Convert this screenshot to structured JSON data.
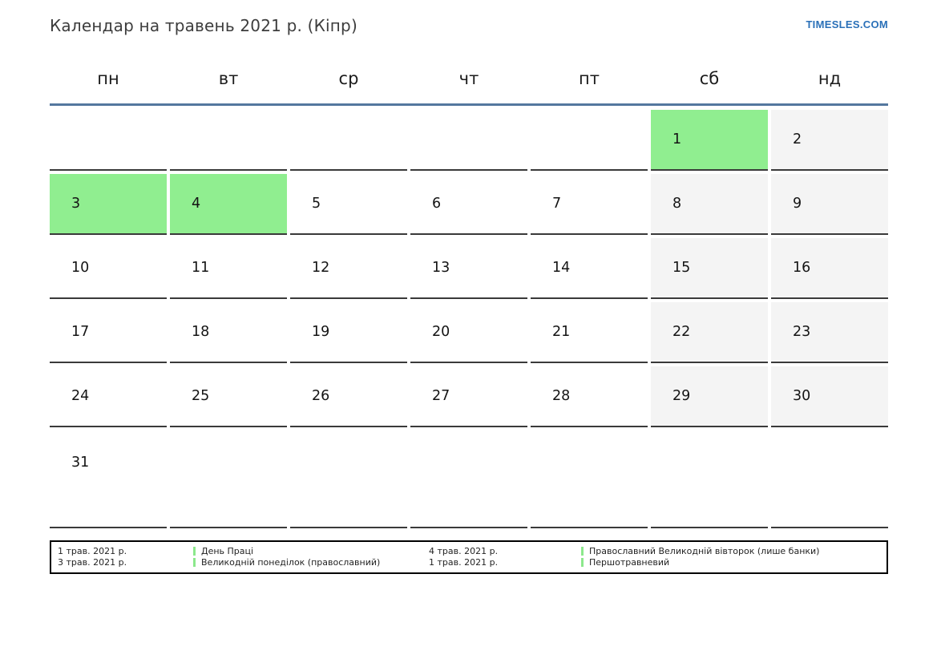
{
  "page": {
    "title": "Календар на травень 2021 р. (Кіпр)",
    "site_link": "TIMESLES.COM"
  },
  "calendar": {
    "weekdays": [
      "пн",
      "вт",
      "ср",
      "чт",
      "пт",
      "сб",
      "нд"
    ],
    "weeks": [
      [
        {
          "d": "",
          "t": ""
        },
        {
          "d": "",
          "t": ""
        },
        {
          "d": "",
          "t": ""
        },
        {
          "d": "",
          "t": ""
        },
        {
          "d": "",
          "t": ""
        },
        {
          "d": "1",
          "t": "holiday"
        },
        {
          "d": "2",
          "t": "weekend"
        }
      ],
      [
        {
          "d": "3",
          "t": "holiday"
        },
        {
          "d": "4",
          "t": "holiday"
        },
        {
          "d": "5",
          "t": ""
        },
        {
          "d": "6",
          "t": ""
        },
        {
          "d": "7",
          "t": ""
        },
        {
          "d": "8",
          "t": "weekend"
        },
        {
          "d": "9",
          "t": "weekend"
        }
      ],
      [
        {
          "d": "10",
          "t": ""
        },
        {
          "d": "11",
          "t": ""
        },
        {
          "d": "12",
          "t": ""
        },
        {
          "d": "13",
          "t": ""
        },
        {
          "d": "14",
          "t": ""
        },
        {
          "d": "15",
          "t": "weekend"
        },
        {
          "d": "16",
          "t": "weekend"
        }
      ],
      [
        {
          "d": "17",
          "t": ""
        },
        {
          "d": "18",
          "t": ""
        },
        {
          "d": "19",
          "t": ""
        },
        {
          "d": "20",
          "t": ""
        },
        {
          "d": "21",
          "t": ""
        },
        {
          "d": "22",
          "t": "weekend"
        },
        {
          "d": "23",
          "t": "weekend"
        }
      ],
      [
        {
          "d": "24",
          "t": ""
        },
        {
          "d": "25",
          "t": ""
        },
        {
          "d": "26",
          "t": ""
        },
        {
          "d": "27",
          "t": ""
        },
        {
          "d": "28",
          "t": ""
        },
        {
          "d": "29",
          "t": "weekend"
        },
        {
          "d": "30",
          "t": "weekend"
        }
      ],
      [
        {
          "d": "31",
          "t": ""
        },
        {
          "d": "",
          "t": ""
        },
        {
          "d": "",
          "t": ""
        },
        {
          "d": "",
          "t": ""
        },
        {
          "d": "",
          "t": ""
        },
        {
          "d": "",
          "t": ""
        },
        {
          "d": "",
          "t": ""
        }
      ]
    ]
  },
  "legend": {
    "entries": [
      {
        "date": "1 трав. 2021 р.",
        "label": "День Праці"
      },
      {
        "date": "3 трав. 2021 р.",
        "label": "Великодній понеділок (православний)"
      },
      {
        "date": "4 трав. 2021 р.",
        "label": "Православний Великодній вівторок (лише банки)"
      },
      {
        "date": "1 трав. 2021 р.",
        "label": "Першотравневий"
      }
    ]
  },
  "colors": {
    "holiday_green": "#90ee90",
    "weekend_gray": "#f4f4f4",
    "rule_blue": "#54779e",
    "link_blue": "#2a70b8",
    "legend_marker_green": "#8ce88c"
  }
}
